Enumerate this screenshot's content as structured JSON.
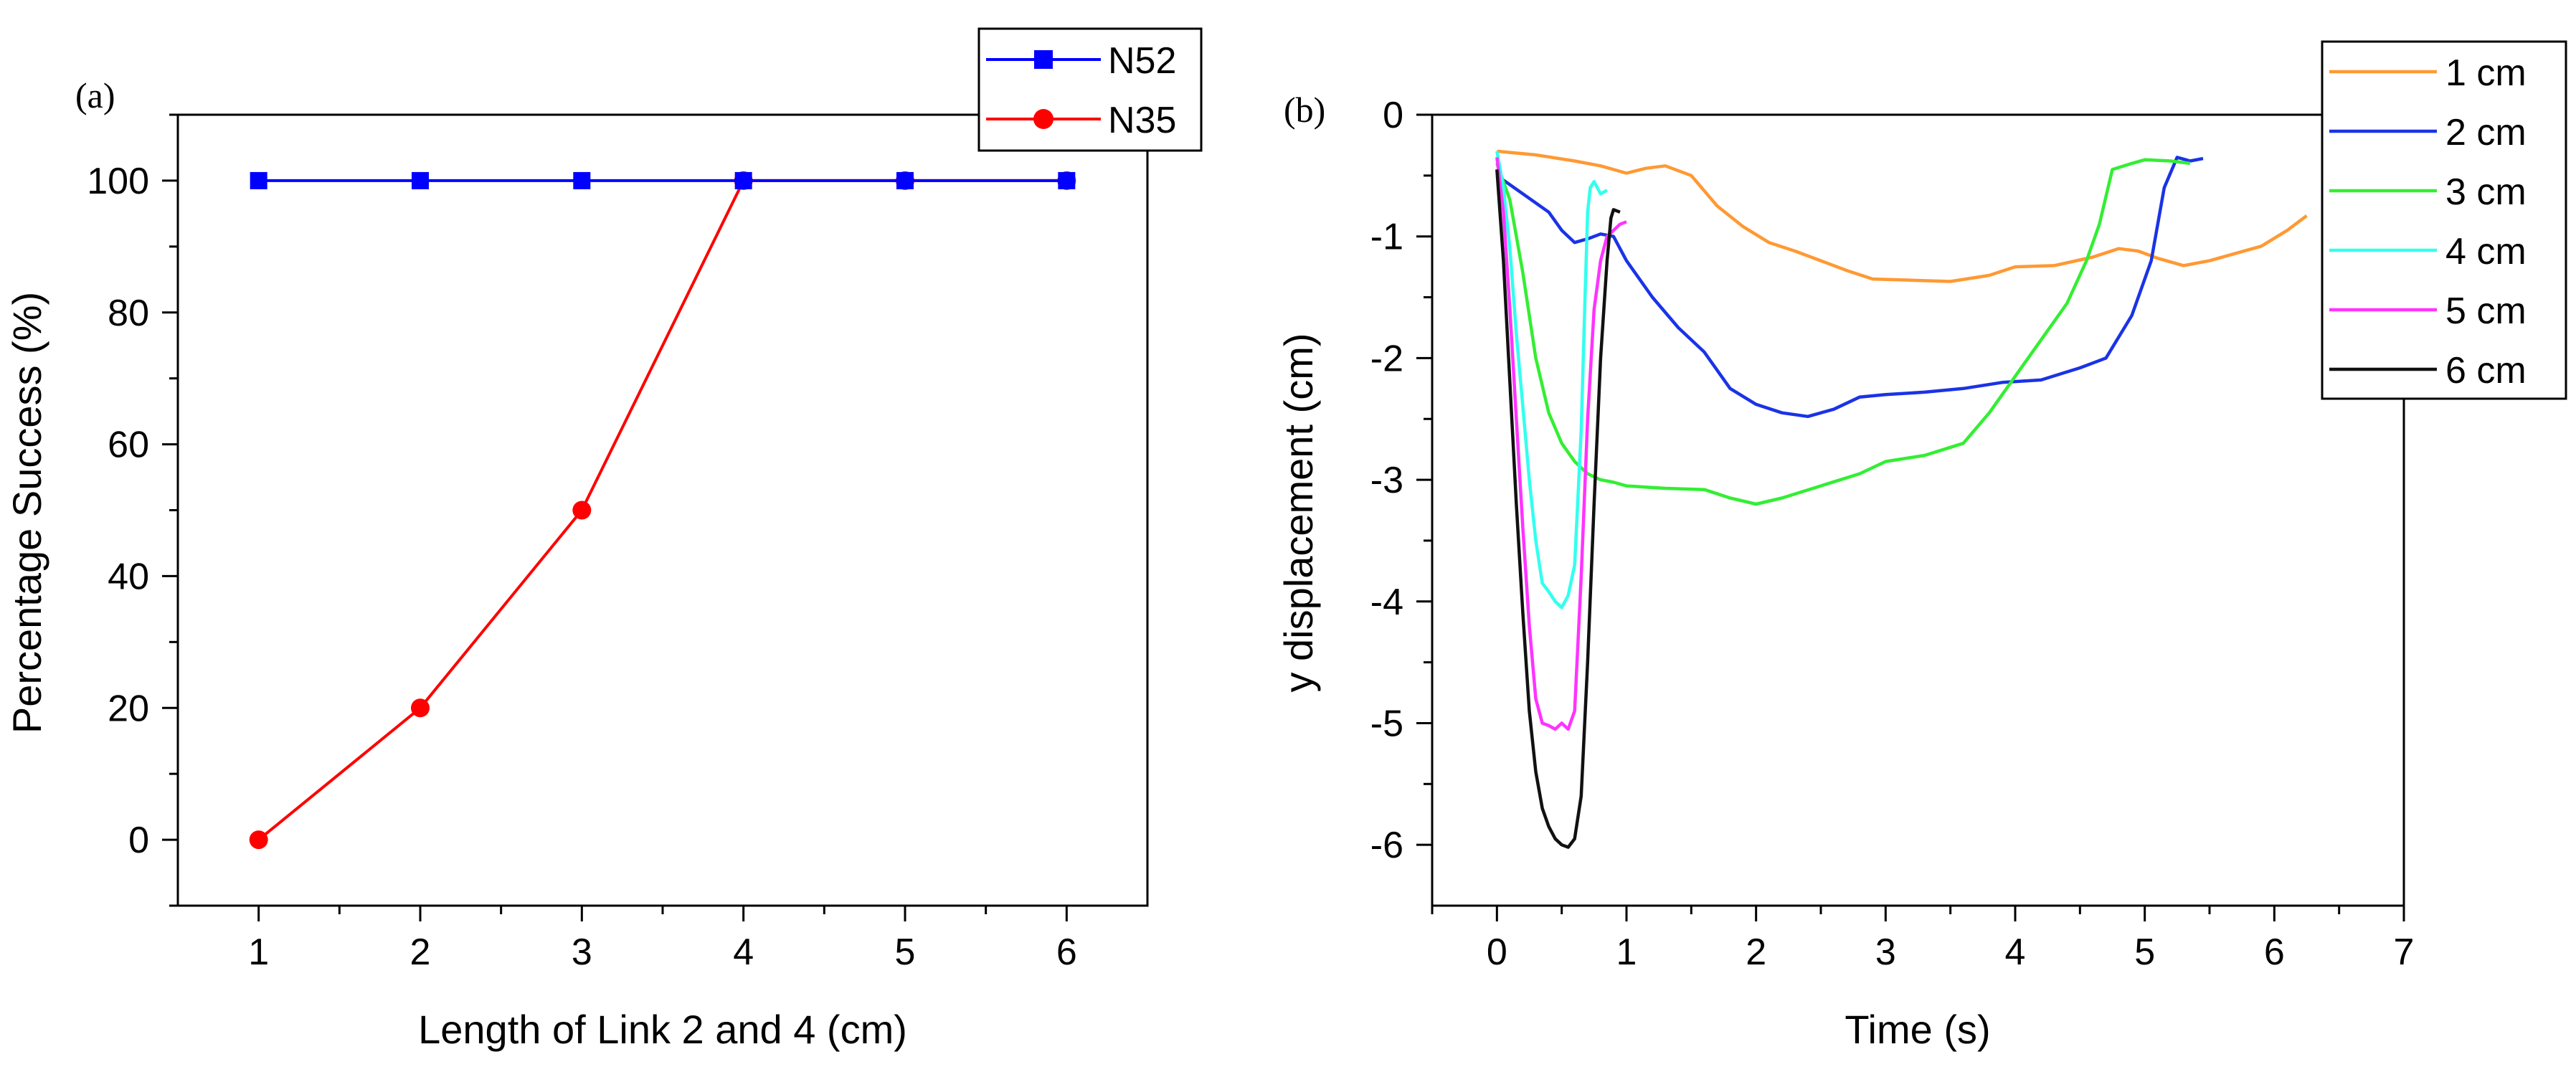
{
  "colors": {
    "n52": "#0000ff",
    "n35": "#ff0000",
    "cm1": "#ff9933",
    "cm2": "#1a33e6",
    "cm3": "#33ee33",
    "cm4": "#33ffee",
    "cm5": "#ff33ff",
    "cm6": "#111111"
  },
  "chart_data": [
    {
      "type": "line",
      "panel_label": "(a)",
      "xlabel": "Length of Link 2 and 4 (cm)",
      "ylabel": "Percentage Success (%)",
      "xlim": [
        0.5,
        6.5
      ],
      "ylim": [
        -10,
        110
      ],
      "x_ticks": [
        "1",
        "2",
        "3",
        "4",
        "5",
        "6"
      ],
      "y_ticks": [
        "0",
        "20",
        "40",
        "60",
        "80",
        "100"
      ],
      "legend_position": "top-right",
      "x": [
        1,
        2,
        3,
        4,
        5,
        6
      ],
      "series": [
        {
          "name": "N52",
          "marker": "square",
          "color": "#0000ff",
          "values": [
            100,
            100,
            100,
            100,
            100,
            100
          ]
        },
        {
          "name": "N35",
          "marker": "circle",
          "color": "#ff0000",
          "values": [
            0,
            20,
            50,
            100,
            100,
            100
          ]
        }
      ]
    },
    {
      "type": "line",
      "panel_label": "(b)",
      "xlabel": "Time (s)",
      "ylabel": "y displacement (cm)",
      "xlim": [
        -0.5,
        7
      ],
      "ylim": [
        -6.5,
        0
      ],
      "x_ticks": [
        "0",
        "1",
        "2",
        "3",
        "4",
        "5",
        "6",
        "7"
      ],
      "y_ticks": [
        "0",
        "-1",
        "-2",
        "-3",
        "-4",
        "-5",
        "-6"
      ],
      "legend_position": "top-right",
      "series": [
        {
          "name": "1 cm",
          "color": "#ff9933",
          "points": [
            [
              0,
              -0.3
            ],
            [
              0.3,
              -0.33
            ],
            [
              0.6,
              -0.38
            ],
            [
              0.8,
              -0.42
            ],
            [
              1.0,
              -0.48
            ],
            [
              1.15,
              -0.44
            ],
            [
              1.3,
              -0.42
            ],
            [
              1.5,
              -0.5
            ],
            [
              1.7,
              -0.75
            ],
            [
              1.9,
              -0.92
            ],
            [
              2.1,
              -1.05
            ],
            [
              2.3,
              -1.12
            ],
            [
              2.5,
              -1.2
            ],
            [
              2.7,
              -1.28
            ],
            [
              2.9,
              -1.35
            ],
            [
              3.2,
              -1.36
            ],
            [
              3.5,
              -1.37
            ],
            [
              3.8,
              -1.32
            ],
            [
              4.0,
              -1.25
            ],
            [
              4.3,
              -1.24
            ],
            [
              4.6,
              -1.17
            ],
            [
              4.8,
              -1.1
            ],
            [
              4.95,
              -1.12
            ],
            [
              5.1,
              -1.18
            ],
            [
              5.3,
              -1.24
            ],
            [
              5.5,
              -1.2
            ],
            [
              5.7,
              -1.14
            ],
            [
              5.9,
              -1.08
            ],
            [
              6.1,
              -0.95
            ],
            [
              6.25,
              -0.83
            ]
          ]
        },
        {
          "name": "2 cm",
          "color": "#1a33e6",
          "points": [
            [
              0,
              -0.5
            ],
            [
              0.2,
              -0.65
            ],
            [
              0.4,
              -0.8
            ],
            [
              0.5,
              -0.95
            ],
            [
              0.6,
              -1.05
            ],
            [
              0.7,
              -1.02
            ],
            [
              0.8,
              -0.98
            ],
            [
              0.9,
              -1.0
            ],
            [
              1.0,
              -1.2
            ],
            [
              1.2,
              -1.5
            ],
            [
              1.4,
              -1.75
            ],
            [
              1.6,
              -1.95
            ],
            [
              1.8,
              -2.25
            ],
            [
              2.0,
              -2.38
            ],
            [
              2.2,
              -2.45
            ],
            [
              2.4,
              -2.48
            ],
            [
              2.6,
              -2.42
            ],
            [
              2.8,
              -2.32
            ],
            [
              3.0,
              -2.3
            ],
            [
              3.3,
              -2.28
            ],
            [
              3.6,
              -2.25
            ],
            [
              3.9,
              -2.2
            ],
            [
              4.2,
              -2.18
            ],
            [
              4.5,
              -2.08
            ],
            [
              4.7,
              -2.0
            ],
            [
              4.9,
              -1.65
            ],
            [
              5.05,
              -1.2
            ],
            [
              5.15,
              -0.6
            ],
            [
              5.25,
              -0.35
            ],
            [
              5.35,
              -0.38
            ],
            [
              5.45,
              -0.36
            ]
          ]
        },
        {
          "name": "3 cm",
          "color": "#33ee33",
          "points": [
            [
              0,
              -0.4
            ],
            [
              0.1,
              -0.7
            ],
            [
              0.2,
              -1.3
            ],
            [
              0.3,
              -2.0
            ],
            [
              0.4,
              -2.45
            ],
            [
              0.5,
              -2.7
            ],
            [
              0.6,
              -2.85
            ],
            [
              0.7,
              -2.95
            ],
            [
              0.8,
              -3.0
            ],
            [
              0.9,
              -3.02
            ],
            [
              1.0,
              -3.05
            ],
            [
              1.3,
              -3.07
            ],
            [
              1.6,
              -3.08
            ],
            [
              1.8,
              -3.15
            ],
            [
              2.0,
              -3.2
            ],
            [
              2.2,
              -3.15
            ],
            [
              2.5,
              -3.05
            ],
            [
              2.8,
              -2.95
            ],
            [
              3.0,
              -2.85
            ],
            [
              3.3,
              -2.8
            ],
            [
              3.6,
              -2.7
            ],
            [
              3.8,
              -2.45
            ],
            [
              4.0,
              -2.15
            ],
            [
              4.2,
              -1.85
            ],
            [
              4.4,
              -1.55
            ],
            [
              4.55,
              -1.2
            ],
            [
              4.65,
              -0.9
            ],
            [
              4.75,
              -0.45
            ],
            [
              4.9,
              -0.4
            ],
            [
              5.0,
              -0.37
            ],
            [
              5.2,
              -0.38
            ],
            [
              5.35,
              -0.4
            ]
          ]
        },
        {
          "name": "4 cm",
          "color": "#33ffee",
          "points": [
            [
              0,
              -0.3
            ],
            [
              0.05,
              -0.6
            ],
            [
              0.1,
              -1.1
            ],
            [
              0.15,
              -1.8
            ],
            [
              0.2,
              -2.4
            ],
            [
              0.25,
              -3.0
            ],
            [
              0.3,
              -3.5
            ],
            [
              0.35,
              -3.85
            ],
            [
              0.4,
              -3.92
            ],
            [
              0.45,
              -4.0
            ],
            [
              0.5,
              -4.05
            ],
            [
              0.55,
              -3.95
            ],
            [
              0.6,
              -3.7
            ],
            [
              0.65,
              -2.6
            ],
            [
              0.68,
              -1.5
            ],
            [
              0.7,
              -0.8
            ],
            [
              0.72,
              -0.6
            ],
            [
              0.75,
              -0.55
            ],
            [
              0.8,
              -0.65
            ],
            [
              0.85,
              -0.62
            ]
          ]
        },
        {
          "name": "5 cm",
          "color": "#ff33ff",
          "points": [
            [
              0,
              -0.35
            ],
            [
              0.05,
              -0.8
            ],
            [
              0.1,
              -1.6
            ],
            [
              0.15,
              -2.5
            ],
            [
              0.2,
              -3.4
            ],
            [
              0.25,
              -4.2
            ],
            [
              0.3,
              -4.8
            ],
            [
              0.35,
              -5.0
            ],
            [
              0.4,
              -5.02
            ],
            [
              0.45,
              -5.05
            ],
            [
              0.5,
              -5.0
            ],
            [
              0.55,
              -5.05
            ],
            [
              0.6,
              -4.9
            ],
            [
              0.65,
              -3.8
            ],
            [
              0.7,
              -2.5
            ],
            [
              0.75,
              -1.6
            ],
            [
              0.8,
              -1.2
            ],
            [
              0.85,
              -1.0
            ],
            [
              0.9,
              -0.95
            ],
            [
              0.95,
              -0.9
            ],
            [
              1.0,
              -0.88
            ]
          ]
        },
        {
          "name": "6 cm",
          "color": "#111111",
          "points": [
            [
              0,
              -0.45
            ],
            [
              0.05,
              -1.2
            ],
            [
              0.1,
              -2.2
            ],
            [
              0.15,
              -3.2
            ],
            [
              0.2,
              -4.1
            ],
            [
              0.25,
              -4.9
            ],
            [
              0.3,
              -5.4
            ],
            [
              0.35,
              -5.7
            ],
            [
              0.4,
              -5.85
            ],
            [
              0.45,
              -5.95
            ],
            [
              0.5,
              -6.0
            ],
            [
              0.55,
              -6.02
            ],
            [
              0.6,
              -5.95
            ],
            [
              0.65,
              -5.6
            ],
            [
              0.7,
              -4.5
            ],
            [
              0.75,
              -3.2
            ],
            [
              0.8,
              -2.0
            ],
            [
              0.85,
              -1.2
            ],
            [
              0.88,
              -0.85
            ],
            [
              0.9,
              -0.78
            ],
            [
              0.95,
              -0.8
            ]
          ]
        }
      ]
    }
  ]
}
